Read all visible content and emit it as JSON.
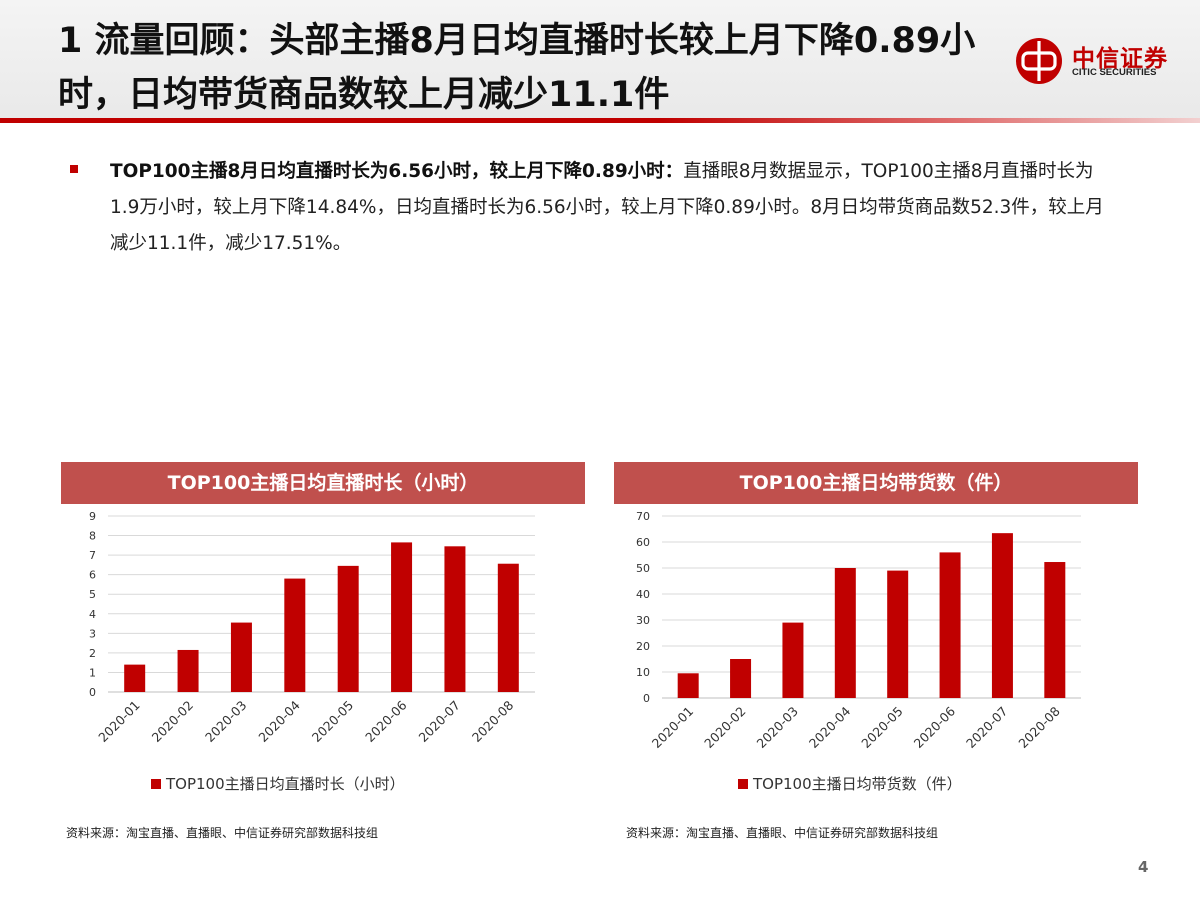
{
  "header": {
    "title": "1 流量回顾：头部主播8月日均直播时长较上月下降0.89小时，日均带货商品数较上月减少11.1件",
    "logo_cn": "中信证券",
    "logo_en": "CITIC SECURITIES"
  },
  "bullet": {
    "lead": "TOP100主播8月日均直播时长为6.56小时，较上月下降0.89小时：",
    "body": "直播眼8月数据显示，TOP100主播8月直播时长为1.9万小时，较上月下降14.84%，日均直播时长为6.56小时，较上月下降0.89小时。8月日均带货商品数52.3件，较上月减少11.1件，减少17.51%。"
  },
  "colors": {
    "accent": "#c00000",
    "title_bar": "#c0504d",
    "bar": "#c00000"
  },
  "chart_data": [
    {
      "type": "bar",
      "title": "TOP100主播日均直播时长（小时）",
      "categories": [
        "2020-01",
        "2020-02",
        "2020-03",
        "2020-04",
        "2020-05",
        "2020-06",
        "2020-07",
        "2020-08"
      ],
      "series": [
        {
          "name": "TOP100主播日均直播时长（小时）",
          "values": [
            1.4,
            2.15,
            3.55,
            5.8,
            6.45,
            7.65,
            7.45,
            6.56
          ]
        }
      ],
      "ylim": [
        0,
        9
      ],
      "yticks": [
        0,
        1,
        2,
        3,
        4,
        5,
        6,
        7,
        8,
        9
      ],
      "grid": true,
      "legend": "bottom",
      "source": "资料来源：淘宝直播、直播眼、中信证券研究部数据科技组"
    },
    {
      "type": "bar",
      "title": "TOP100主播日均带货数（件）",
      "categories": [
        "2020-01",
        "2020-02",
        "2020-03",
        "2020-04",
        "2020-05",
        "2020-06",
        "2020-07",
        "2020-08"
      ],
      "series": [
        {
          "name": "TOP100主播日均带货数（件）",
          "values": [
            9.5,
            15,
            29,
            50,
            49,
            56,
            63.4,
            52.3
          ]
        }
      ],
      "ylim": [
        0,
        70
      ],
      "yticks": [
        0,
        10,
        20,
        30,
        40,
        50,
        60,
        70
      ],
      "grid": true,
      "legend": "bottom",
      "source": "资料来源：淘宝直播、直播眼、中信证券研究部数据科技组"
    }
  ],
  "page_number": "4"
}
